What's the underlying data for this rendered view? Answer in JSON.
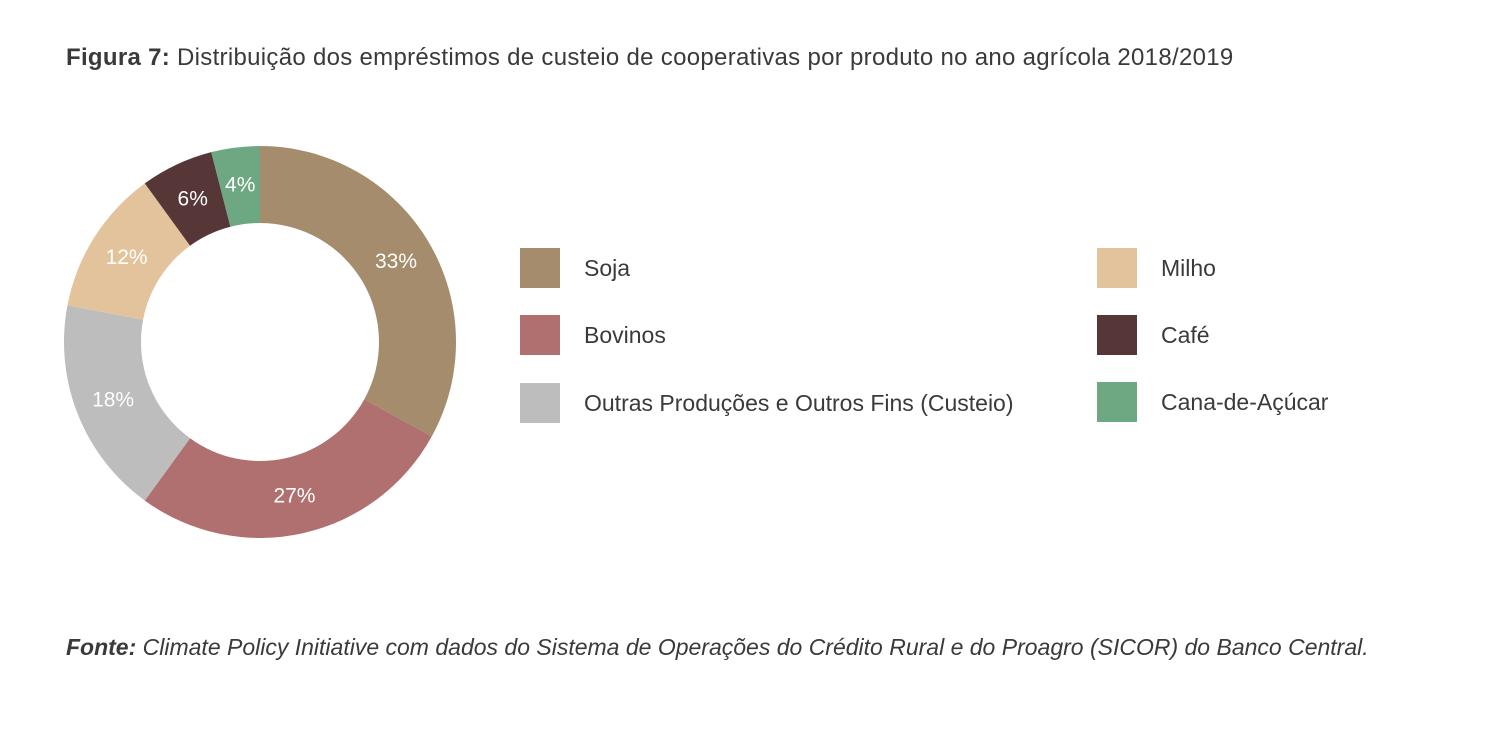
{
  "title": {
    "label": "Figura 7:",
    "text": " Distribuição dos empréstimos de custeio de cooperativas por produto no ano agrícola 2018/2019"
  },
  "chart_data": {
    "type": "pie",
    "subtype": "donut",
    "start": "top, clockwise",
    "slices": [
      {
        "name": "Soja",
        "value": 33,
        "label": "33%",
        "color": "#a58c6c"
      },
      {
        "name": "Bovinos",
        "value": 27,
        "label": "27%",
        "color": "#b07070"
      },
      {
        "name": "Outras Produções e Outros Fins (Custeio)",
        "value": 18,
        "label": "18%",
        "color": "#bdbdbd"
      },
      {
        "name": "Milho",
        "value": 12,
        "label": "12%",
        "color": "#e3c39b"
      },
      {
        "name": "Café",
        "value": 6,
        "label": "6%",
        "color": "#563637"
      },
      {
        "name": "Cana-de-Açúcar",
        "value": 4,
        "label": "4%",
        "color": "#6ea882"
      }
    ]
  },
  "legend": {
    "items": [
      {
        "label": "Soja",
        "color": "#a58c6c"
      },
      {
        "label": "Bovinos",
        "color": "#b07070"
      },
      {
        "label": "Outras Produções e Outros Fins (Custeio)",
        "color": "#bdbdbd"
      },
      {
        "label": "Milho",
        "color": "#e3c39b"
      },
      {
        "label": "Café",
        "color": "#563637"
      },
      {
        "label": "Cana-de-Açúcar",
        "color": "#6ea882"
      }
    ]
  },
  "source": {
    "label": "Fonte:",
    "text": " Climate Policy Initiative com dados do Sistema de Operações do Crédito Rural e do Proagro (SICOR) do Banco Central."
  }
}
